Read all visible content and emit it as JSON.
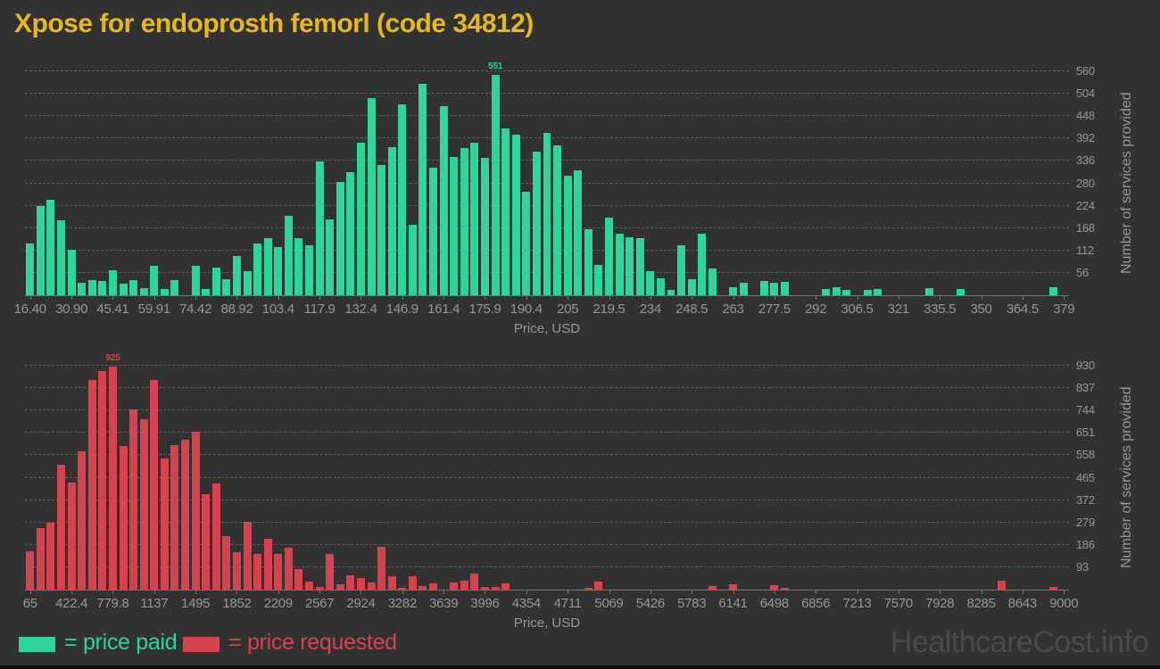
{
  "title": "Xpose for endoprosth femorl (code 34812)",
  "watermark": "HealthcareCost.info",
  "colors": {
    "background": "#323232",
    "price_paid": "#2bd59b",
    "price_requested": "#d8414e",
    "title_text": "#e6b81d",
    "axis_text": "#969696",
    "gridline": "#5d5d5d",
    "watermark": "#4b4b4b"
  },
  "legend": {
    "paid_label": "= price paid",
    "requested_label": "= price requested"
  },
  "chart_data": [
    {
      "type": "bar",
      "name": "price-paid-histogram",
      "color": "#2bd59b",
      "xlabel": "Price, USD",
      "ylabel": "Number of services provided",
      "bin_start": 16.4,
      "bin_width": 3.625,
      "xlim": [
        16.4,
        379
      ],
      "ylim": [
        0,
        560
      ],
      "grid": true,
      "legend_position": "bottom",
      "x_tick_labels": [
        "16.40",
        "30.90",
        "45.41",
        "59.91",
        "74.42",
        "88.92",
        "103.4",
        "117.9",
        "132.4",
        "146.9",
        "161.4",
        "175.9",
        "190.4",
        "205",
        "219.5",
        "234",
        "248.5",
        "263",
        "277.5",
        "292",
        "306.5",
        "321",
        "335.5",
        "350",
        "364.5",
        "379"
      ],
      "y_ticks": [
        56,
        112,
        168,
        224,
        280,
        336,
        392,
        448,
        504,
        560
      ],
      "max_label": "551",
      "values": [
        129,
        224,
        238,
        188,
        113,
        31,
        38,
        35,
        62,
        28,
        37,
        18,
        74,
        15,
        39,
        0,
        74,
        16,
        70,
        40,
        98,
        60,
        129,
        142,
        120,
        199,
        143,
        125,
        334,
        190,
        284,
        308,
        382,
        494,
        325,
        370,
        478,
        177,
        528,
        319,
        474,
        345,
        369,
        382,
        343,
        551,
        417,
        401,
        258,
        360,
        407,
        375,
        298,
        312,
        166,
        75,
        195,
        155,
        146,
        143,
        60,
        43,
        13,
        124,
        40,
        155,
        67,
        0,
        21,
        31,
        0,
        36,
        31,
        33,
        0,
        0,
        0,
        16,
        19,
        13,
        0,
        14,
        16,
        0,
        0,
        0,
        0,
        18,
        0,
        0,
        15,
        0,
        0,
        0,
        0,
        0,
        0,
        0,
        0,
        20,
        0
      ]
    },
    {
      "type": "bar",
      "name": "price-requested-histogram",
      "color": "#d8414e",
      "xlabel": "Price, USD",
      "ylabel": "Number of services provided",
      "bin_start": 65,
      "bin_width": 89.35,
      "xlim": [
        65,
        9000
      ],
      "ylim": [
        0,
        930
      ],
      "grid": true,
      "legend_position": "bottom",
      "x_tick_labels": [
        "65",
        "422.4",
        "779.8",
        "1137",
        "1495",
        "1852",
        "2209",
        "2567",
        "2924",
        "3282",
        "3639",
        "3996",
        "4354",
        "4711",
        "5069",
        "5426",
        "5783",
        "6141",
        "6498",
        "6856",
        "7213",
        "7570",
        "7928",
        "8285",
        "8643",
        "9000"
      ],
      "y_ticks": [
        93,
        186,
        279,
        372,
        465,
        558,
        651,
        744,
        837,
        930
      ],
      "max_label": "925",
      "values": [
        161,
        257,
        279,
        517,
        444,
        573,
        870,
        908,
        925,
        598,
        750,
        707,
        872,
        543,
        601,
        622,
        657,
        397,
        440,
        223,
        155,
        281,
        149,
        211,
        149,
        176,
        87,
        33,
        12,
        149,
        21,
        58,
        47,
        30,
        177,
        57,
        6,
        55,
        16,
        26,
        0,
        30,
        38,
        65,
        12,
        10,
        25,
        0,
        0,
        0,
        0,
        0,
        0,
        0,
        8,
        32,
        0,
        0,
        0,
        0,
        0,
        0,
        0,
        0,
        0,
        0,
        16,
        0,
        21,
        0,
        0,
        0,
        17,
        7,
        0,
        0,
        0,
        0,
        0,
        0,
        0,
        0,
        0,
        0,
        0,
        0,
        0,
        0,
        0,
        0,
        0,
        0,
        0,
        0,
        37,
        0,
        0,
        0,
        0,
        12,
        0
      ]
    }
  ]
}
